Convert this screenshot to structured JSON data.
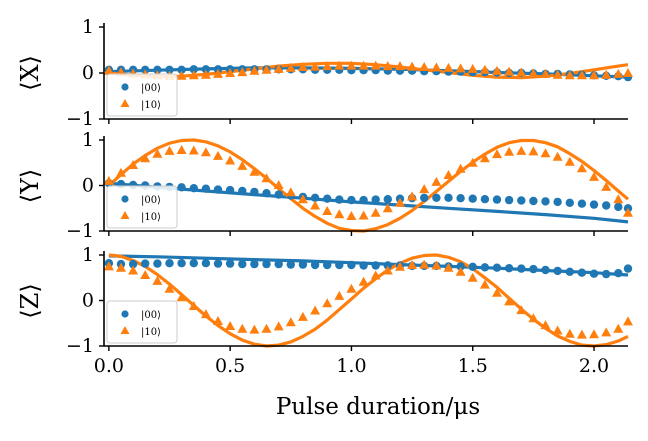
{
  "colors": {
    "series_00": "#1f77b4",
    "series_10": "#ff7f0e"
  },
  "chart_data": [
    {
      "type": "scatter",
      "ylabel": "⟨X⟩",
      "xlabel": "",
      "xlim": [
        -0.02,
        2.14
      ],
      "ylim": [
        -1.0,
        1.0
      ],
      "yticks": [
        -1,
        0,
        1
      ],
      "ytick_labels": [
        "−1",
        "0",
        "1"
      ],
      "xticks": [
        0.0,
        0.5,
        1.0,
        1.5,
        2.0
      ],
      "xtick_labels": [],
      "legend": {
        "position": "lower-left",
        "entries": [
          "|00⟩",
          "|10⟩"
        ]
      },
      "series": [
        {
          "name": "|00⟩",
          "kind": "points",
          "marker": "circle",
          "color": "#1f77b4",
          "x": [
            0.0,
            0.05,
            0.1,
            0.15,
            0.2,
            0.25,
            0.3,
            0.35,
            0.4,
            0.45,
            0.5,
            0.55,
            0.6,
            0.65,
            0.7,
            0.75,
            0.8,
            0.85,
            0.9,
            0.95,
            1.0,
            1.05,
            1.1,
            1.15,
            1.2,
            1.25,
            1.3,
            1.35,
            1.4,
            1.45,
            1.5,
            1.55,
            1.6,
            1.65,
            1.7,
            1.75,
            1.8,
            1.85,
            1.9,
            1.95,
            2.0,
            2.05,
            2.1,
            2.14
          ],
          "y": [
            0.07,
            0.07,
            0.07,
            0.07,
            0.07,
            0.07,
            0.07,
            0.08,
            0.08,
            0.08,
            0.08,
            0.08,
            0.08,
            0.08,
            0.08,
            0.08,
            0.08,
            0.07,
            0.07,
            0.07,
            0.06,
            0.06,
            0.06,
            0.05,
            0.05,
            0.05,
            0.04,
            0.04,
            0.03,
            0.03,
            0.02,
            0.02,
            0.01,
            0.0,
            0.0,
            -0.01,
            -0.02,
            -0.02,
            -0.03,
            -0.04,
            -0.05,
            -0.06,
            -0.07,
            -0.09
          ]
        },
        {
          "name": "|10⟩",
          "kind": "points",
          "marker": "triangle",
          "color": "#ff7f0e",
          "x": [
            0.0,
            0.05,
            0.1,
            0.15,
            0.2,
            0.25,
            0.3,
            0.35,
            0.4,
            0.45,
            0.5,
            0.55,
            0.6,
            0.65,
            0.7,
            0.75,
            0.8,
            0.85,
            0.9,
            0.95,
            1.0,
            1.05,
            1.1,
            1.15,
            1.2,
            1.25,
            1.3,
            1.35,
            1.4,
            1.45,
            1.5,
            1.55,
            1.6,
            1.65,
            1.7,
            1.75,
            1.8,
            1.85,
            1.9,
            1.95,
            2.0,
            2.05,
            2.1,
            2.14
          ],
          "y": [
            0.05,
            0.02,
            -0.01,
            -0.03,
            -0.05,
            -0.06,
            -0.06,
            -0.05,
            -0.04,
            -0.02,
            0.0,
            0.02,
            0.05,
            0.07,
            0.09,
            0.11,
            0.13,
            0.14,
            0.15,
            0.16,
            0.16,
            0.16,
            0.16,
            0.15,
            0.15,
            0.14,
            0.13,
            0.12,
            0.11,
            0.1,
            0.09,
            0.07,
            0.05,
            0.03,
            0.01,
            -0.01,
            -0.02,
            -0.04,
            -0.05,
            -0.05,
            -0.05,
            -0.04,
            -0.02,
            0.0
          ]
        },
        {
          "name": "",
          "kind": "line",
          "color": "#1f77b4",
          "x": [
            0.0,
            0.2,
            0.4,
            0.6,
            0.8,
            1.0,
            1.2,
            1.4,
            1.6,
            1.8,
            2.0,
            2.14
          ],
          "y": [
            0.03,
            0.06,
            0.09,
            0.11,
            0.11,
            0.1,
            0.08,
            0.05,
            0.01,
            -0.02,
            -0.06,
            -0.09
          ]
        },
        {
          "name": "",
          "kind": "line",
          "color": "#ff7f0e",
          "x": [
            0.0,
            0.1,
            0.2,
            0.3,
            0.4,
            0.5,
            0.6,
            0.7,
            0.8,
            0.9,
            1.0,
            1.1,
            1.2,
            1.3,
            1.4,
            1.5,
            1.6,
            1.7,
            1.8,
            1.9,
            2.0,
            2.1,
            2.14
          ],
          "y": [
            0.0,
            -0.05,
            -0.08,
            -0.07,
            -0.03,
            0.03,
            0.09,
            0.15,
            0.19,
            0.21,
            0.21,
            0.18,
            0.13,
            0.07,
            0.01,
            -0.05,
            -0.09,
            -0.1,
            -0.07,
            -0.01,
            0.07,
            0.15,
            0.18
          ]
        }
      ]
    },
    {
      "type": "scatter",
      "ylabel": "⟨Y⟩",
      "xlabel": "",
      "xlim": [
        -0.02,
        2.14
      ],
      "ylim": [
        -1.0,
        1.0
      ],
      "yticks": [
        -1,
        0,
        1
      ],
      "ytick_labels": [
        "−1",
        "0",
        "1"
      ],
      "xticks": [
        0.0,
        0.5,
        1.0,
        1.5,
        2.0
      ],
      "xtick_labels": [],
      "legend": {
        "position": "lower-left",
        "entries": [
          "|00⟩",
          "|10⟩"
        ]
      },
      "series": [
        {
          "name": "|00⟩",
          "kind": "points",
          "marker": "circle",
          "color": "#1f77b4",
          "x": [
            0.0,
            0.05,
            0.1,
            0.15,
            0.2,
            0.25,
            0.3,
            0.35,
            0.4,
            0.45,
            0.5,
            0.55,
            0.6,
            0.65,
            0.7,
            0.75,
            0.8,
            0.85,
            0.9,
            0.95,
            1.0,
            1.05,
            1.1,
            1.15,
            1.2,
            1.25,
            1.3,
            1.35,
            1.4,
            1.45,
            1.5,
            1.55,
            1.6,
            1.65,
            1.7,
            1.75,
            1.8,
            1.85,
            1.9,
            1.95,
            2.0,
            2.05,
            2.1,
            2.14
          ],
          "y": [
            0.05,
            0.03,
            0.01,
            0.0,
            -0.02,
            -0.03,
            -0.04,
            -0.06,
            -0.07,
            -0.09,
            -0.1,
            -0.12,
            -0.14,
            -0.17,
            -0.2,
            -0.22,
            -0.25,
            -0.27,
            -0.29,
            -0.31,
            -0.32,
            -0.32,
            -0.31,
            -0.3,
            -0.29,
            -0.28,
            -0.27,
            -0.27,
            -0.27,
            -0.28,
            -0.29,
            -0.3,
            -0.31,
            -0.32,
            -0.33,
            -0.34,
            -0.35,
            -0.36,
            -0.38,
            -0.4,
            -0.42,
            -0.44,
            -0.47,
            -0.5
          ]
        },
        {
          "name": "|10⟩",
          "kind": "points",
          "marker": "triangle",
          "color": "#ff7f0e",
          "x": [
            0.0,
            0.05,
            0.1,
            0.15,
            0.2,
            0.25,
            0.3,
            0.35,
            0.4,
            0.45,
            0.5,
            0.55,
            0.6,
            0.65,
            0.7,
            0.75,
            0.8,
            0.85,
            0.9,
            0.95,
            1.0,
            1.05,
            1.1,
            1.15,
            1.2,
            1.25,
            1.3,
            1.35,
            1.4,
            1.45,
            1.5,
            1.55,
            1.6,
            1.65,
            1.7,
            1.75,
            1.8,
            1.85,
            1.9,
            1.95,
            2.0,
            2.05,
            2.1,
            2.14
          ],
          "y": [
            0.1,
            0.28,
            0.45,
            0.6,
            0.7,
            0.76,
            0.78,
            0.77,
            0.73,
            0.65,
            0.55,
            0.43,
            0.3,
            0.16,
            0.01,
            -0.15,
            -0.3,
            -0.44,
            -0.56,
            -0.63,
            -0.67,
            -0.66,
            -0.6,
            -0.5,
            -0.38,
            -0.24,
            -0.08,
            0.08,
            0.23,
            0.37,
            0.5,
            0.6,
            0.69,
            0.74,
            0.76,
            0.75,
            0.71,
            0.63,
            0.52,
            0.38,
            0.19,
            -0.03,
            -0.3,
            -0.6
          ]
        },
        {
          "name": "",
          "kind": "line",
          "color": "#1f77b4",
          "x": [
            0.0,
            0.2,
            0.4,
            0.6,
            0.8,
            1.0,
            1.2,
            1.4,
            1.6,
            1.8,
            2.0,
            2.14
          ],
          "y": [
            0.05,
            -0.04,
            -0.12,
            -0.2,
            -0.28,
            -0.36,
            -0.43,
            -0.5,
            -0.57,
            -0.64,
            -0.72,
            -0.8
          ]
        },
        {
          "name": "",
          "kind": "line",
          "color": "#ff7f0e",
          "x": [
            0.0,
            0.05,
            0.1,
            0.15,
            0.2,
            0.25,
            0.3,
            0.35,
            0.4,
            0.45,
            0.5,
            0.55,
            0.6,
            0.65,
            0.7,
            0.75,
            0.8,
            0.85,
            0.9,
            0.95,
            1.0,
            1.05,
            1.1,
            1.15,
            1.2,
            1.25,
            1.3,
            1.35,
            1.4,
            1.45,
            1.5,
            1.55,
            1.6,
            1.65,
            1.7,
            1.75,
            1.8,
            1.85,
            1.9,
            1.95,
            2.0,
            2.05,
            2.1,
            2.14
          ],
          "y": [
            0.0,
            0.24,
            0.47,
            0.66,
            0.82,
            0.93,
            0.99,
            1.0,
            0.96,
            0.87,
            0.74,
            0.57,
            0.37,
            0.16,
            -0.07,
            -0.29,
            -0.5,
            -0.68,
            -0.83,
            -0.94,
            -0.99,
            -1.0,
            -0.95,
            -0.86,
            -0.72,
            -0.55,
            -0.35,
            -0.13,
            0.09,
            0.31,
            0.51,
            0.69,
            0.84,
            0.94,
            0.99,
            0.99,
            0.94,
            0.85,
            0.7,
            0.53,
            0.33,
            0.11,
            -0.12,
            -0.3
          ]
        }
      ]
    },
    {
      "type": "scatter",
      "ylabel": "⟨Z⟩",
      "xlabel": "Pulse duration/μs",
      "xlim": [
        -0.02,
        2.14
      ],
      "ylim": [
        -1.0,
        1.0
      ],
      "yticks": [
        -1,
        0,
        1
      ],
      "ytick_labels": [
        "−1",
        "0",
        "1"
      ],
      "xticks": [
        0.0,
        0.5,
        1.0,
        1.5,
        2.0
      ],
      "xtick_labels": [
        "0.0",
        "0.5",
        "1.0",
        "1.5",
        "2.0"
      ],
      "legend": {
        "position": "lower-left",
        "entries": [
          "|00⟩",
          "|10⟩"
        ]
      },
      "series": [
        {
          "name": "|00⟩",
          "kind": "points",
          "marker": "circle",
          "color": "#1f77b4",
          "x": [
            0.0,
            0.05,
            0.1,
            0.15,
            0.2,
            0.25,
            0.3,
            0.35,
            0.4,
            0.45,
            0.5,
            0.55,
            0.6,
            0.65,
            0.7,
            0.75,
            0.8,
            0.85,
            0.9,
            0.95,
            1.0,
            1.05,
            1.1,
            1.15,
            1.2,
            1.25,
            1.3,
            1.35,
            1.4,
            1.45,
            1.5,
            1.55,
            1.6,
            1.65,
            1.7,
            1.75,
            1.8,
            1.85,
            1.9,
            1.95,
            2.0,
            2.05,
            2.1,
            2.14
          ],
          "y": [
            0.82,
            0.8,
            0.8,
            0.81,
            0.81,
            0.82,
            0.82,
            0.82,
            0.82,
            0.81,
            0.81,
            0.8,
            0.8,
            0.8,
            0.8,
            0.79,
            0.79,
            0.78,
            0.78,
            0.78,
            0.78,
            0.77,
            0.77,
            0.77,
            0.77,
            0.76,
            0.76,
            0.76,
            0.75,
            0.75,
            0.74,
            0.73,
            0.72,
            0.71,
            0.7,
            0.69,
            0.67,
            0.65,
            0.63,
            0.61,
            0.59,
            0.58,
            0.6,
            0.7
          ]
        },
        {
          "name": "|10⟩",
          "kind": "points",
          "marker": "triangle",
          "color": "#ff7f0e",
          "x": [
            0.0,
            0.05,
            0.1,
            0.15,
            0.2,
            0.25,
            0.3,
            0.35,
            0.4,
            0.45,
            0.5,
            0.55,
            0.6,
            0.65,
            0.7,
            0.75,
            0.8,
            0.85,
            0.9,
            0.95,
            1.0,
            1.05,
            1.1,
            1.15,
            1.2,
            1.25,
            1.3,
            1.35,
            1.4,
            1.45,
            1.5,
            1.55,
            1.6,
            1.65,
            1.7,
            1.75,
            1.8,
            1.85,
            1.9,
            1.95,
            2.0,
            2.05,
            2.1,
            2.14
          ],
          "y": [
            0.75,
            0.72,
            0.66,
            0.56,
            0.43,
            0.26,
            0.07,
            -0.12,
            -0.3,
            -0.45,
            -0.56,
            -0.62,
            -0.64,
            -0.62,
            -0.57,
            -0.48,
            -0.36,
            -0.22,
            -0.06,
            0.1,
            0.26,
            0.41,
            0.55,
            0.66,
            0.74,
            0.78,
            0.79,
            0.77,
            0.72,
            0.63,
            0.5,
            0.35,
            0.17,
            -0.02,
            -0.21,
            -0.39,
            -0.54,
            -0.66,
            -0.73,
            -0.75,
            -0.74,
            -0.7,
            -0.62,
            -0.46
          ]
        },
        {
          "name": "",
          "kind": "line",
          "color": "#1f77b4",
          "x": [
            0.0,
            0.2,
            0.4,
            0.6,
            0.8,
            1.0,
            1.2,
            1.4,
            1.6,
            1.8,
            2.0,
            2.14
          ],
          "y": [
            0.98,
            0.96,
            0.93,
            0.9,
            0.87,
            0.83,
            0.79,
            0.75,
            0.71,
            0.66,
            0.61,
            0.56
          ]
        },
        {
          "name": "",
          "kind": "line",
          "color": "#ff7f0e",
          "x": [
            0.0,
            0.05,
            0.1,
            0.15,
            0.2,
            0.25,
            0.3,
            0.35,
            0.4,
            0.45,
            0.5,
            0.55,
            0.6,
            0.65,
            0.7,
            0.75,
            0.8,
            0.85,
            0.9,
            0.95,
            1.0,
            1.05,
            1.1,
            1.15,
            1.2,
            1.25,
            1.3,
            1.35,
            1.4,
            1.45,
            1.5,
            1.55,
            1.6,
            1.65,
            1.7,
            1.75,
            1.8,
            1.85,
            1.9,
            1.95,
            2.0,
            2.05,
            2.1,
            2.14
          ],
          "y": [
            1.0,
            0.97,
            0.88,
            0.75,
            0.57,
            0.36,
            0.13,
            -0.11,
            -0.34,
            -0.55,
            -0.73,
            -0.87,
            -0.96,
            -1.0,
            -0.98,
            -0.91,
            -0.79,
            -0.63,
            -0.43,
            -0.2,
            0.03,
            0.27,
            0.48,
            0.67,
            0.82,
            0.93,
            0.99,
            1.0,
            0.95,
            0.85,
            0.7,
            0.5,
            0.29,
            0.05,
            -0.19,
            -0.41,
            -0.61,
            -0.78,
            -0.9,
            -0.98,
            -1.0,
            -0.97,
            -0.89,
            -0.79
          ]
        }
      ]
    }
  ]
}
